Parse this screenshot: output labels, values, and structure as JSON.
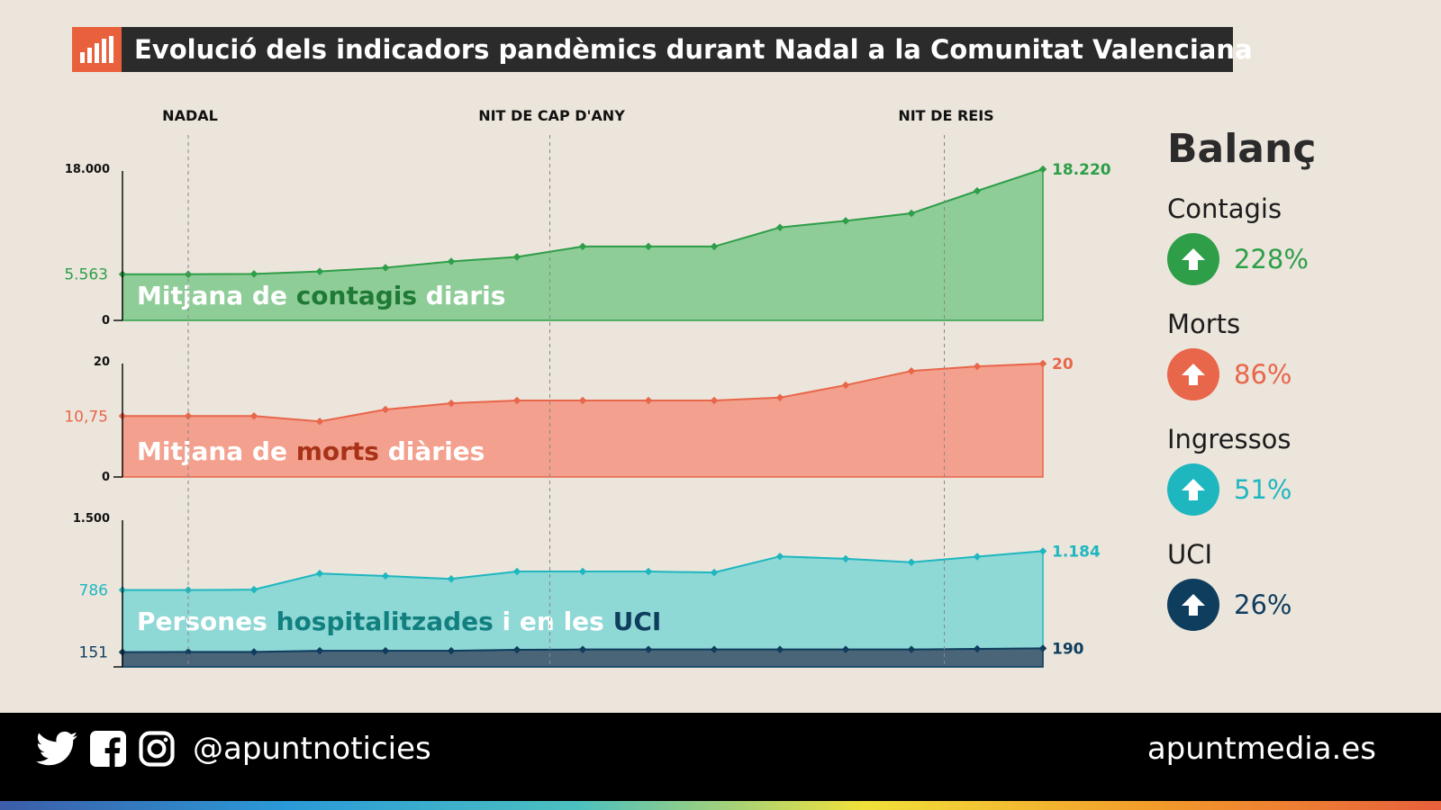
{
  "title": "Evolució dels indicadors pandèmics durant Nadal a la Comunitat Valenciana",
  "chart_data": [
    {
      "type": "area",
      "events": [
        {
          "label": "NADAL",
          "index": 1
        },
        {
          "label": "NIT DE CAP D'ANY",
          "index": 6.5
        },
        {
          "label": "NIT DE REIS",
          "index": 12.5
        }
      ],
      "label_parts": [
        "Mitjana de ",
        "contagis",
        " diaris"
      ],
      "color": "#2e9e48",
      "fill": "#8fcd98",
      "accent": "#1f7a35",
      "ylim": [
        0,
        18000
      ],
      "ytick_labels": [
        "0",
        "18.000"
      ],
      "start_label": "5.563",
      "end_label": "18.220",
      "values": [
        5563,
        5563,
        5600,
        5900,
        6350,
        7100,
        7650,
        8900,
        8900,
        8900,
        11200,
        12000,
        12900,
        15600,
        18220
      ]
    },
    {
      "type": "area",
      "label_parts": [
        "Mitjana de ",
        "morts",
        " diàries"
      ],
      "color": "#e8664a",
      "fill": "#f3a08e",
      "accent": "#a83218",
      "ylim": [
        0,
        20
      ],
      "ytick_labels": [
        "0",
        "20"
      ],
      "start_label": "10,75",
      "end_label": "20",
      "values": [
        10.75,
        10.75,
        10.75,
        9.8,
        11.9,
        13.0,
        13.5,
        13.5,
        13.5,
        13.5,
        14.0,
        16.2,
        18.7,
        19.5,
        20
      ]
    },
    {
      "type": "area",
      "label_parts": [
        "Persones ",
        "hospitalitzades",
        " i en les ",
        "UCI"
      ],
      "ylim": [
        0,
        1500
      ],
      "ytick_labels": [
        "1.500"
      ],
      "series": [
        {
          "color": "#1fb7bf",
          "fill": "#8ed8d6",
          "accent": "#11807f",
          "start_label": "786",
          "end_label": "1.184",
          "values": [
            786,
            786,
            790,
            955,
            930,
            900,
            975,
            975,
            975,
            965,
            1130,
            1105,
            1070,
            1127,
            1184
          ]
        },
        {
          "color": "#0f3d5e",
          "fill": "#4a6478",
          "accent": "#0f3d5e",
          "start_label": "151",
          "end_label": "190",
          "values": [
            151,
            153,
            153,
            165,
            165,
            165,
            175,
            178,
            178,
            178,
            178,
            178,
            178,
            184,
            190
          ]
        }
      ]
    }
  ],
  "balance": {
    "title": "Balanç",
    "items": [
      {
        "label": "Contagis",
        "value": "228%",
        "color": "#2e9e48",
        "icon": "arrow-up-icon"
      },
      {
        "label": "Morts",
        "value": "86%",
        "color": "#e8664a",
        "icon": "arrow-up-icon"
      },
      {
        "label": "Ingressos",
        "value": "51%",
        "color": "#1fb7bf",
        "icon": "arrow-up-icon"
      },
      {
        "label": "UCI",
        "value": "26%",
        "color": "#0f3d5e",
        "icon": "arrow-up-icon"
      }
    ]
  },
  "footer": {
    "handle": "@apuntnoticies",
    "site": "apuntmedia.es",
    "icons": [
      "twitter-icon",
      "facebook-icon",
      "instagram-icon"
    ]
  }
}
